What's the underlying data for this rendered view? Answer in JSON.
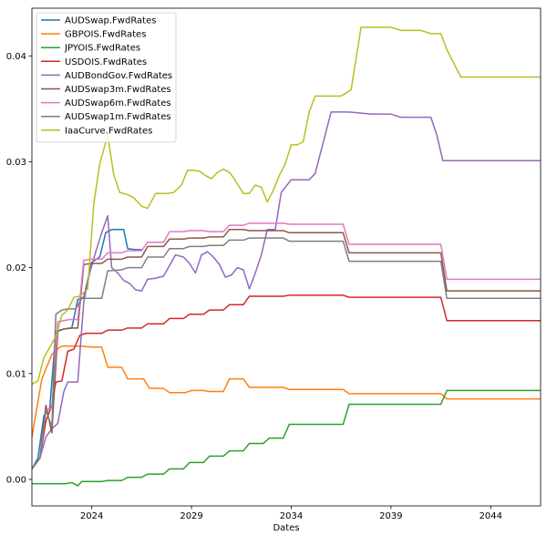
{
  "chart_data": {
    "type": "line",
    "title": "",
    "xlabel": "Dates",
    "ylabel": "",
    "xlim": [
      2021.0,
      2046.5
    ],
    "ylim": [
      -0.0025,
      0.0445
    ],
    "x_ticks": [
      2024,
      2029,
      2034,
      2039,
      2044
    ],
    "x_tick_labels": [
      "2024",
      "2029",
      "2034",
      "2039",
      "2044"
    ],
    "y_ticks": [
      0.0,
      0.01,
      0.02,
      0.03,
      0.04
    ],
    "y_tick_labels": [
      "0.00",
      "0.01",
      "0.02",
      "0.03",
      "0.04"
    ],
    "grid": false,
    "legend_position": "upper-left",
    "series": [
      {
        "name": "AUDSwap.FwdRates",
        "color": "#1f77b4",
        "x": [
          2021.0,
          2021.3,
          2021.6,
          2021.9,
          2022.2,
          2022.6,
          2023.0,
          2023.3,
          2023.6,
          2024.0,
          2024.4,
          2024.7,
          2025.0,
          2025.3,
          2025.6,
          2025.8,
          2026.2,
          2026.5
        ],
        "y": [
          0.001,
          0.002,
          0.006,
          0.0068,
          0.014,
          0.0142,
          0.0143,
          0.017,
          0.0172,
          0.0205,
          0.021,
          0.0233,
          0.0236,
          0.0236,
          0.0236,
          0.0218,
          0.0217,
          0.0217
        ]
      },
      {
        "name": "GBPOIS.FwdRates",
        "color": "#ff7f0e",
        "x": [
          2021.0,
          2021.5,
          2022.0,
          2022.4,
          2022.6,
          2023.0,
          2023.5,
          2024.0,
          2024.5,
          2024.8,
          2025.5,
          2025.8,
          2026.6,
          2026.9,
          2027.6,
          2027.9,
          2028.7,
          2029.0,
          2029.6,
          2029.9,
          2030.6,
          2030.9,
          2031.6,
          2031.9,
          2033.6,
          2033.9,
          2036.6,
          2036.9,
          2041.5,
          2041.8,
          2046.5
        ],
        "y": [
          0.004,
          0.0095,
          0.0118,
          0.0125,
          0.0126,
          0.0126,
          0.0126,
          0.0125,
          0.0125,
          0.0106,
          0.0106,
          0.0095,
          0.0095,
          0.0086,
          0.0086,
          0.0082,
          0.0082,
          0.0084,
          0.0084,
          0.0083,
          0.0083,
          0.0095,
          0.0095,
          0.0087,
          0.0087,
          0.0085,
          0.0085,
          0.0081,
          0.0081,
          0.0076,
          0.0076
        ]
      },
      {
        "name": "JPYOIS.FwdRates",
        "color": "#2ca02c",
        "x": [
          2021.0,
          2022.7,
          2023.0,
          2023.3,
          2023.5,
          2024.0,
          2024.5,
          2024.8,
          2025.5,
          2025.8,
          2026.5,
          2026.8,
          2027.6,
          2027.9,
          2028.6,
          2028.9,
          2029.6,
          2029.9,
          2030.6,
          2030.9,
          2031.6,
          2031.9,
          2032.6,
          2032.9,
          2033.6,
          2033.9,
          2036.6,
          2036.9,
          2041.5,
          2041.8,
          2046.5
        ],
        "y": [
          -0.0004,
          -0.0004,
          -0.0003,
          -0.0006,
          -0.0002,
          -0.0002,
          -0.0002,
          -0.0001,
          -0.0001,
          0.0002,
          0.0002,
          0.0005,
          0.0005,
          0.001,
          0.001,
          0.0016,
          0.0016,
          0.0022,
          0.0022,
          0.0027,
          0.0027,
          0.0034,
          0.0034,
          0.0039,
          0.0039,
          0.0052,
          0.0052,
          0.0071,
          0.0071,
          0.0084,
          0.0084
        ]
      },
      {
        "name": "USDOIS.FwdRates",
        "color": "#d62728",
        "x": [
          2021.0,
          2021.4,
          2021.7,
          2022.0,
          2022.2,
          2022.5,
          2022.8,
          2023.1,
          2023.4,
          2023.7,
          2024.0,
          2024.5,
          2024.8,
          2025.5,
          2025.8,
          2026.5,
          2026.8,
          2027.6,
          2027.9,
          2028.6,
          2028.9,
          2029.6,
          2029.9,
          2030.6,
          2030.9,
          2031.6,
          2031.9,
          2033.6,
          2033.9,
          2036.6,
          2036.9,
          2041.5,
          2041.8,
          2046.5
        ],
        "y": [
          0.001,
          0.002,
          0.0055,
          0.007,
          0.0092,
          0.0093,
          0.0121,
          0.0123,
          0.0136,
          0.0138,
          0.0138,
          0.0138,
          0.0141,
          0.0141,
          0.0143,
          0.0143,
          0.0147,
          0.0147,
          0.0152,
          0.0152,
          0.0156,
          0.0156,
          0.016,
          0.016,
          0.0165,
          0.0165,
          0.0173,
          0.0173,
          0.0174,
          0.0174,
          0.0172,
          0.0172,
          0.015,
          0.015
        ]
      },
      {
        "name": "AUDBondGov.FwdRates",
        "color": "#9467bd",
        "x": [
          2021.0,
          2021.4,
          2021.7,
          2022.0,
          2022.3,
          2022.6,
          2022.8,
          2023.3,
          2023.6,
          2023.9,
          2024.2,
          2024.5,
          2024.8,
          2025.0,
          2025.3,
          2025.6,
          2025.9,
          2026.2,
          2026.5,
          2026.8,
          2027.2,
          2027.6,
          2027.9,
          2028.2,
          2028.6,
          2028.9,
          2029.2,
          2029.5,
          2029.8,
          2030.1,
          2030.4,
          2030.7,
          2031.0,
          2031.3,
          2031.6,
          2031.9,
          2032.2,
          2032.5,
          2032.8,
          2033.2,
          2033.5,
          2034.0,
          2034.5,
          2034.9,
          2035.2,
          2036.0,
          2036.6,
          2036.9,
          2038.0,
          2039.0,
          2039.5,
          2040.5,
          2041.0,
          2041.3,
          2041.6,
          2042.0,
          2044.0,
          2046.5
        ],
        "y": [
          0.001,
          0.002,
          0.004,
          0.0048,
          0.0053,
          0.0083,
          0.0092,
          0.0092,
          0.0168,
          0.0195,
          0.0215,
          0.0233,
          0.0249,
          0.02,
          0.0195,
          0.0188,
          0.0185,
          0.0179,
          0.0178,
          0.0189,
          0.019,
          0.0192,
          0.0202,
          0.0212,
          0.021,
          0.0204,
          0.0195,
          0.0212,
          0.0215,
          0.021,
          0.0203,
          0.0191,
          0.0193,
          0.02,
          0.0198,
          0.018,
          0.0195,
          0.0212,
          0.0236,
          0.0236,
          0.0271,
          0.0283,
          0.0283,
          0.0283,
          0.0289,
          0.0347,
          0.0347,
          0.0347,
          0.0345,
          0.0345,
          0.0342,
          0.0342,
          0.0342,
          0.0325,
          0.0301,
          0.0301,
          0.0301,
          0.0301
        ]
      },
      {
        "name": "AUDSwap3m.FwdRates",
        "color": "#8c564b",
        "x": [
          2021.0,
          2021.4,
          2021.7,
          2022.0,
          2022.3,
          2022.6,
          2022.9,
          2023.3,
          2023.6,
          2024.0,
          2024.5,
          2024.8,
          2025.5,
          2025.8,
          2026.5,
          2026.8,
          2027.6,
          2027.9,
          2028.6,
          2028.9,
          2029.6,
          2029.9,
          2030.6,
          2030.9,
          2031.6,
          2031.9,
          2033.6,
          2033.9,
          2036.6,
          2036.9,
          2041.5,
          2041.8,
          2046.5
        ],
        "y": [
          0.001,
          0.002,
          0.007,
          0.0044,
          0.014,
          0.0142,
          0.0143,
          0.0143,
          0.0203,
          0.0204,
          0.0204,
          0.0208,
          0.0208,
          0.021,
          0.021,
          0.022,
          0.022,
          0.0227,
          0.0227,
          0.0228,
          0.0228,
          0.0229,
          0.0229,
          0.0236,
          0.0236,
          0.0235,
          0.0235,
          0.0233,
          0.0233,
          0.0214,
          0.0214,
          0.0178,
          0.0178
        ]
      },
      {
        "name": "AUDSwap6m.FwdRates",
        "color": "#e377c2",
        "x": [
          2021.0,
          2021.4,
          2021.7,
          2022.0,
          2022.3,
          2022.6,
          2022.9,
          2023.3,
          2023.6,
          2024.0,
          2024.5,
          2024.8,
          2025.5,
          2025.8,
          2026.5,
          2026.8,
          2027.6,
          2027.9,
          2028.6,
          2028.9,
          2029.6,
          2029.9,
          2030.6,
          2030.9,
          2031.6,
          2031.9,
          2033.6,
          2033.9,
          2036.6,
          2036.9,
          2041.5,
          2041.8,
          2046.5
        ],
        "y": [
          0.001,
          0.002,
          0.0065,
          0.0068,
          0.0149,
          0.015,
          0.0151,
          0.0151,
          0.0207,
          0.0208,
          0.0208,
          0.0214,
          0.0214,
          0.0216,
          0.0216,
          0.0224,
          0.0224,
          0.0234,
          0.0234,
          0.0235,
          0.0235,
          0.0234,
          0.0234,
          0.024,
          0.024,
          0.0242,
          0.0242,
          0.0241,
          0.0241,
          0.0222,
          0.0222,
          0.0189,
          0.0189
        ]
      },
      {
        "name": "AUDSwap1m.FwdRates",
        "color": "#7f7f7f",
        "x": [
          2021.0,
          2021.4,
          2021.7,
          2022.0,
          2022.2,
          2022.5,
          2022.8,
          2023.2,
          2023.5,
          2024.0,
          2024.5,
          2024.8,
          2025.5,
          2025.8,
          2026.5,
          2026.8,
          2027.6,
          2027.9,
          2028.6,
          2028.9,
          2029.6,
          2029.9,
          2030.6,
          2030.9,
          2031.6,
          2031.9,
          2033.6,
          2033.9,
          2036.6,
          2036.9,
          2041.5,
          2041.8,
          2046.5
        ],
        "y": [
          0.001,
          0.002,
          0.0065,
          0.005,
          0.0156,
          0.016,
          0.0161,
          0.0161,
          0.0171,
          0.0171,
          0.0171,
          0.0197,
          0.0198,
          0.02,
          0.02,
          0.021,
          0.021,
          0.0218,
          0.0218,
          0.022,
          0.022,
          0.0221,
          0.0221,
          0.0226,
          0.0226,
          0.0228,
          0.0228,
          0.0225,
          0.0225,
          0.0206,
          0.0206,
          0.0171,
          0.0171
        ]
      },
      {
        "name": "IaaCurve.FwdRates",
        "color": "#bcbd22",
        "x": [
          2021.0,
          2021.3,
          2021.6,
          2021.9,
          2022.2,
          2022.5,
          2022.8,
          2023.1,
          2023.4,
          2023.8,
          2024.1,
          2024.4,
          2024.8,
          2025.1,
          2025.4,
          2025.8,
          2026.1,
          2026.5,
          2026.8,
          2027.2,
          2027.5,
          2027.8,
          2028.1,
          2028.5,
          2028.8,
          2029.1,
          2029.4,
          2029.7,
          2030.0,
          2030.3,
          2030.6,
          2030.9,
          2031.1,
          2031.3,
          2031.6,
          2031.9,
          2032.2,
          2032.5,
          2032.8,
          2033.1,
          2033.4,
          2033.7,
          2034.0,
          2034.3,
          2034.6,
          2034.9,
          2035.2,
          2035.5,
          2036.5,
          2037.0,
          2037.5,
          2038.5,
          2039.0,
          2039.5,
          2040.5,
          2041.0,
          2041.2,
          2041.5,
          2041.8,
          2042.5,
          2046.5
        ],
        "y": [
          0.009,
          0.0093,
          0.0115,
          0.0125,
          0.0135,
          0.0155,
          0.016,
          0.0172,
          0.0173,
          0.018,
          0.026,
          0.0298,
          0.0325,
          0.0288,
          0.0271,
          0.0269,
          0.0266,
          0.0258,
          0.0256,
          0.027,
          0.027,
          0.027,
          0.0271,
          0.0278,
          0.0292,
          0.0292,
          0.0291,
          0.0287,
          0.0284,
          0.029,
          0.0293,
          0.029,
          0.0285,
          0.0279,
          0.027,
          0.027,
          0.0278,
          0.0276,
          0.0262,
          0.0273,
          0.0287,
          0.0298,
          0.0316,
          0.0316,
          0.0319,
          0.0347,
          0.0362,
          0.0362,
          0.0362,
          0.0368,
          0.0427,
          0.0427,
          0.0427,
          0.0424,
          0.0424,
          0.0421,
          0.0421,
          0.0421,
          0.0406,
          0.038,
          0.038
        ]
      }
    ]
  }
}
